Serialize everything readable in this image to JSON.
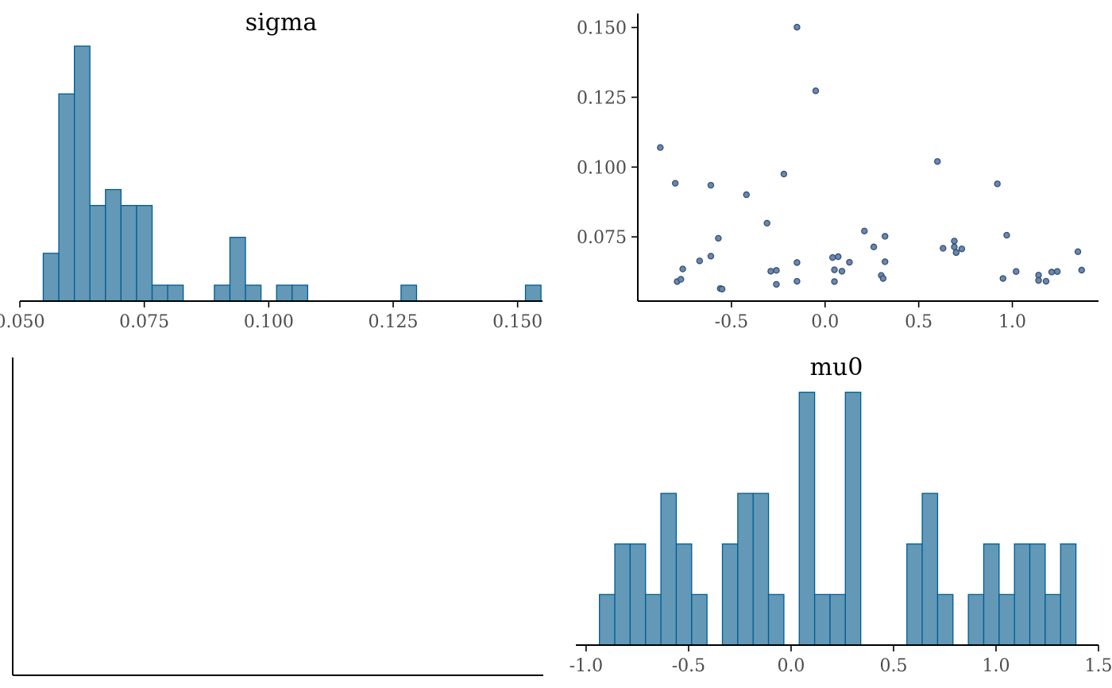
{
  "colors": {
    "bar_fill": "#6399b6",
    "bar_stroke": "#005b96",
    "point_fill": "#6d87aa",
    "point_stroke": "#2c4a75",
    "axis": "#000000",
    "tick_text": "#4d4d4d"
  },
  "chart_data": [
    {
      "id": "sigma-hist",
      "type": "bar",
      "title": "sigma",
      "xlabel": "",
      "ylabel": "",
      "xlim": [
        0.05,
        0.155
      ],
      "ylim": [
        0,
        16.5
      ],
      "x_ticks": [
        0.05,
        0.075,
        0.1,
        0.125,
        0.15
      ],
      "x_tick_labels": [
        "0.050",
        "0.075",
        "0.100",
        "0.125",
        "0.150"
      ],
      "bin_width": 0.003125,
      "bin_start": 0.0547,
      "counts": [
        3,
        13,
        16,
        6,
        7,
        6,
        6,
        1,
        1,
        0,
        0,
        1,
        4,
        1,
        0,
        1,
        1,
        0,
        0,
        0,
        0,
        0,
        0,
        1,
        0,
        0,
        0,
        0,
        0,
        0,
        0,
        1
      ],
      "grid": false
    },
    {
      "id": "mu0-vs-sigma-scatter",
      "type": "scatter",
      "title": "",
      "xlabel": "",
      "ylabel": "",
      "xlim": [
        -1.0,
        1.46
      ],
      "ylim": [
        0.052,
        0.155
      ],
      "x_ticks": [
        -0.5,
        0.0,
        0.5,
        1.0
      ],
      "x_tick_labels": [
        "-0.5",
        "0.0",
        "0.5",
        "1.0"
      ],
      "y_ticks": [
        0.075,
        0.1,
        0.125,
        0.15
      ],
      "y_tick_labels": [
        "0.075",
        "0.100",
        "0.125",
        "0.150"
      ],
      "x": [
        -0.88,
        -0.8,
        -0.79,
        -0.77,
        -0.76,
        -0.67,
        -0.61,
        -0.61,
        -0.57,
        -0.56,
        -0.55,
        -0.42,
        -0.31,
        -0.29,
        -0.26,
        -0.26,
        -0.22,
        -0.15,
        -0.15,
        -0.15,
        -0.05,
        0.04,
        0.05,
        0.05,
        0.07,
        0.09,
        0.13,
        0.21,
        0.26,
        0.3,
        0.31,
        0.32,
        0.32,
        0.6,
        0.63,
        0.69,
        0.69,
        0.7,
        0.7,
        0.73,
        0.92,
        0.95,
        0.97,
        1.02,
        1.14,
        1.14,
        1.18,
        1.21,
        1.24,
        1.35,
        1.37
      ],
      "y": [
        0.107,
        0.0942,
        0.059,
        0.0598,
        0.0635,
        0.0664,
        0.0935,
        0.0681,
        0.0745,
        0.0565,
        0.0563,
        0.0901,
        0.0799,
        0.0627,
        0.058,
        0.063,
        0.0975,
        0.1501,
        0.0658,
        0.0591,
        0.1273,
        0.0676,
        0.0632,
        0.059,
        0.0679,
        0.0627,
        0.0659,
        0.0771,
        0.0714,
        0.0612,
        0.0601,
        0.0752,
        0.0661,
        0.102,
        0.0709,
        0.0735,
        0.0714,
        0.0694,
        0.0694,
        0.0707,
        0.094,
        0.0601,
        0.0756,
        0.0626,
        0.0613,
        0.0594,
        0.0591,
        0.0624,
        0.0626,
        0.0697,
        0.0631
      ],
      "grid": false
    },
    {
      "id": "empty-panel",
      "type": "scatter",
      "title": "",
      "xlabel": "",
      "ylabel": "",
      "x": [],
      "y": []
    },
    {
      "id": "mu0-hist",
      "type": "bar",
      "title": "mu0",
      "xlabel": "",
      "ylabel": "",
      "xlim": [
        -1.05,
        1.5
      ],
      "ylim": [
        0,
        5.2
      ],
      "x_ticks": [
        -1.0,
        -0.5,
        0.0,
        0.5,
        1.0,
        1.5
      ],
      "x_tick_labels": [
        "-1.0",
        "-0.5",
        "0.0",
        "0.5",
        "1.0",
        "1.5"
      ],
      "bin_width": 0.075,
      "bin_start": -0.935,
      "counts": [
        1,
        2,
        2,
        1,
        3,
        2,
        1,
        0,
        2,
        3,
        3,
        1,
        0,
        5,
        1,
        1,
        5,
        0,
        0,
        0,
        2,
        3,
        1,
        0,
        1,
        2,
        1,
        2,
        2,
        1,
        2
      ],
      "grid": false
    }
  ]
}
